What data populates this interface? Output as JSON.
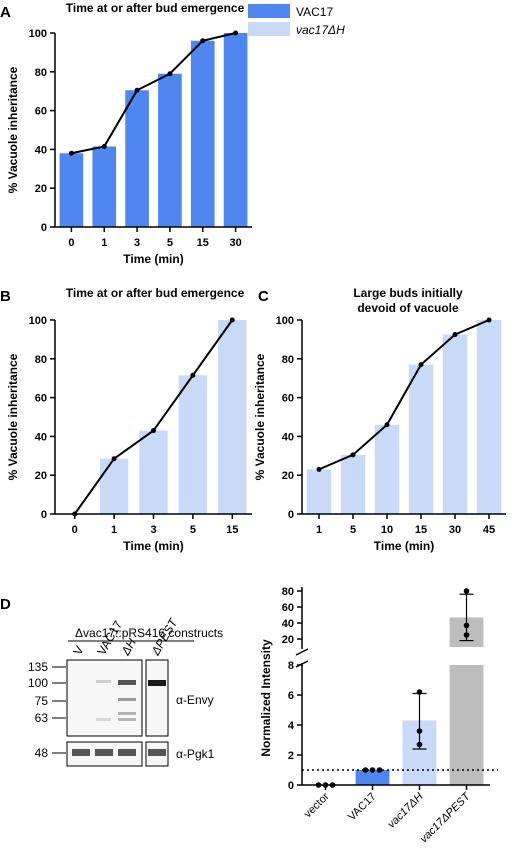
{
  "colors": {
    "vac17": "#4f86f0",
    "vac17dh": "#c8daf7",
    "pest": "#bdbdbd",
    "line": "#000000"
  },
  "legend": {
    "items": [
      {
        "label": "VAC17",
        "italic": false
      },
      {
        "label": "vac17ΔH",
        "italic": true
      }
    ]
  },
  "chart_data": [
    {
      "panel": "A",
      "type": "bar",
      "title": "Time at or after bud emergence",
      "xlabel": "Time (min)",
      "ylabel": "% Vacuole inheritance",
      "categories": [
        "0",
        "1",
        "3",
        "5",
        "15",
        "30"
      ],
      "values": [
        38,
        41.5,
        70.5,
        79,
        96,
        100
      ],
      "line": [
        38,
        41.5,
        70.5,
        79,
        96,
        100
      ],
      "ylim": [
        0,
        100
      ],
      "yticks": [
        0,
        20,
        40,
        60,
        80,
        100
      ],
      "series_color": "vac17"
    },
    {
      "panel": "B",
      "type": "bar",
      "title": "Time at or after bud emergence",
      "xlabel": "Time (min)",
      "ylabel": "% Vacuole inheritance",
      "categories": [
        "0",
        "1",
        "3",
        "5",
        "15"
      ],
      "values": [
        0,
        28.5,
        43,
        71.5,
        100
      ],
      "line": [
        0,
        28.5,
        43,
        71.5,
        100
      ],
      "ylim": [
        0,
        100
      ],
      "yticks": [
        0,
        20,
        40,
        60,
        80,
        100
      ],
      "series_color": "vac17dh"
    },
    {
      "panel": "C",
      "type": "bar",
      "title": [
        "Large buds initially",
        "devoid of vacuole"
      ],
      "xlabel": "Time (min)",
      "ylabel": "% Vacuole inheritance",
      "categories": [
        "1",
        "5",
        "10",
        "15",
        "30",
        "45"
      ],
      "values": [
        23,
        30.5,
        46,
        77,
        92.5,
        100
      ],
      "line": [
        23,
        30.5,
        46,
        77,
        92.5,
        100
      ],
      "ylim": [
        0,
        100
      ],
      "yticks": [
        0,
        20,
        40,
        60,
        80,
        100
      ],
      "series_color": "vac17dh"
    },
    {
      "panel": "D",
      "type": "bar",
      "ylabel": "Normalized Intensity",
      "categories": [
        {
          "label": "vector",
          "italic": false
        },
        {
          "label": "VAC17",
          "italic": false
        },
        {
          "label": "vac17ΔH",
          "italic": true
        },
        {
          "label": "vac17ΔPEST",
          "italic": true
        }
      ],
      "values": [
        0,
        1,
        4.3,
        47
      ],
      "colors": [
        "none",
        "vac17",
        "vac17dh",
        "pest"
      ],
      "error": [
        [
          0,
          0
        ],
        [
          1,
          1
        ],
        [
          2.4,
          6.1
        ],
        [
          18,
          76
        ]
      ],
      "points": [
        [
          0,
          0,
          0
        ],
        [
          1,
          1,
          1
        ],
        [
          2.7,
          3.6,
          6.2
        ],
        [
          25,
          37,
          80
        ]
      ],
      "reference_line": 1,
      "yticks_low": [
        0,
        2,
        4,
        6,
        8
      ],
      "yticks_high": [
        20,
        40,
        60,
        80
      ],
      "axis_break": [
        8,
        10
      ]
    }
  ],
  "blot": {
    "panel": "D",
    "header": "Δvac17::pRS416 constructs",
    "lanes": [
      {
        "label": "V",
        "italic": false
      },
      {
        "label": "VAC17",
        "italic": false
      },
      {
        "label": "ΔH",
        "italic": true
      },
      {
        "label": "ΔPEST",
        "italic": true
      }
    ],
    "mw_markers": [
      "135",
      "100",
      "75",
      "63",
      "48"
    ],
    "antibodies": [
      "α-Envy",
      "α-Pgk1"
    ]
  }
}
